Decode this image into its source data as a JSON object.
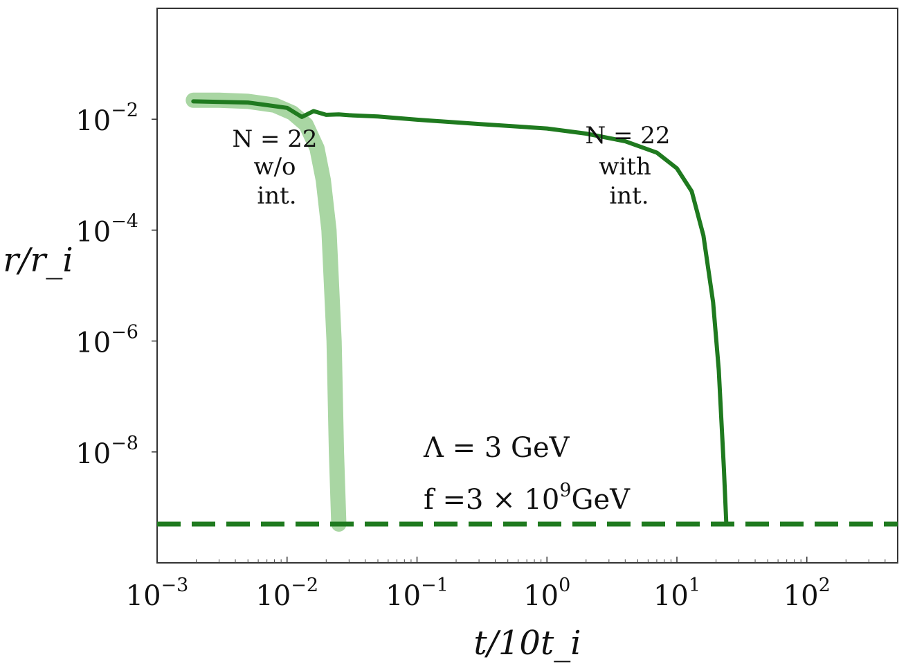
{
  "chart_data": {
    "type": "line",
    "xscale": "log",
    "yscale": "log",
    "xlim": [
      0.001,
      500
    ],
    "ylim": [
      1e-10,
      1
    ],
    "xlabel": "t/10t_i",
    "ylabel": "r/r_i",
    "x_ticks": [
      {
        "value": 0.001,
        "base": "10",
        "exp": "−3"
      },
      {
        "value": 0.01,
        "base": "10",
        "exp": "−2"
      },
      {
        "value": 0.1,
        "base": "10",
        "exp": "−1"
      },
      {
        "value": 1,
        "base": "10",
        "exp": "0"
      },
      {
        "value": 10,
        "base": "10",
        "exp": "1"
      },
      {
        "value": 100,
        "base": "10",
        "exp": "2"
      }
    ],
    "y_ticks": [
      {
        "value": 0.01,
        "base": "10",
        "exp": "−2"
      },
      {
        "value": 0.0001,
        "base": "10",
        "exp": "−4"
      },
      {
        "value": 1e-06,
        "base": "10",
        "exp": "−6"
      },
      {
        "value": 1e-08,
        "base": "10",
        "exp": "−8"
      }
    ],
    "grid": false,
    "series": [
      {
        "name": "",
        "color": "#a9d6a3",
        "x": [
          0.0019,
          0.003,
          0.005,
          0.008,
          0.011,
          0.014,
          0.017,
          0.019,
          0.021,
          0.022,
          0.023,
          0.024,
          0.025
        ],
        "y": [
          0.022,
          0.022,
          0.021,
          0.018,
          0.013,
          0.008,
          0.003,
          0.0008,
          0.0001,
          1e-05,
          1e-06,
          1e-08,
          5e-10
        ]
      },
      {
        "name": "",
        "color": "#1f7a1f",
        "x": [
          0.0019,
          0.005,
          0.01,
          0.013,
          0.016,
          0.02,
          0.025,
          0.03,
          0.05,
          0.1,
          0.3,
          1,
          2,
          4,
          7,
          10,
          13,
          16,
          19,
          21,
          23,
          24
        ],
        "y": [
          0.021,
          0.02,
          0.016,
          0.011,
          0.014,
          0.012,
          0.0122,
          0.0118,
          0.0112,
          0.0098,
          0.0082,
          0.0068,
          0.0055,
          0.004,
          0.0025,
          0.0013,
          0.0005,
          8e-05,
          5e-06,
          3e-07,
          5e-09,
          5e-10
        ]
      },
      {
        "name": "",
        "style": "dashed",
        "color": "#1f7a1f",
        "x": [
          0.001,
          500
        ],
        "y": [
          5e-10,
          5e-10
        ]
      }
    ],
    "annotations": {
      "left": [
        "N = 22",
        "w/o",
        "int."
      ],
      "right": [
        "N = 22",
        "with",
        "int."
      ],
      "lambda": "Λ = 3 GeV",
      "f_prefix": "f =3 × 10",
      "f_exp": "9",
      "f_suffix": "GeV"
    }
  }
}
